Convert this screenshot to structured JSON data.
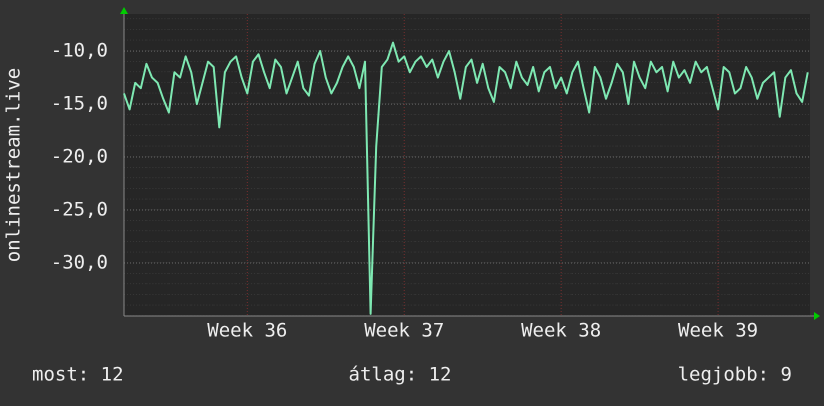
{
  "chart_data": {
    "type": "line",
    "y_label": "onlinestream.live",
    "x": [
      0,
      0.25,
      0.5,
      0.75,
      1,
      1.25,
      1.5,
      1.75,
      2,
      2.25,
      2.5,
      2.75,
      3,
      3.25,
      3.5,
      3.75,
      4,
      4.25,
      4.5,
      4.75,
      5,
      5.25,
      5.5,
      5.75,
      6,
      6.25,
      6.5,
      6.75,
      7,
      7.25,
      7.5,
      7.75,
      8,
      8.25,
      8.5,
      8.75,
      9,
      9.25,
      9.5,
      9.75,
      10,
      10.25,
      10.5,
      10.75,
      11,
      11.25,
      11.5,
      11.75,
      12,
      12.25,
      12.5,
      12.75,
      13,
      13.25,
      13.5,
      13.75,
      14,
      14.25,
      14.5,
      14.75,
      15,
      15.25,
      15.5,
      15.75,
      16,
      16.25,
      16.5,
      16.75,
      17,
      17.25,
      17.5,
      17.75,
      18,
      18.25,
      18.5,
      18.75,
      19,
      19.25,
      19.5,
      19.75,
      20,
      20.25,
      20.5,
      20.75,
      21,
      21.25,
      21.5,
      21.75,
      22,
      22.25,
      22.5,
      22.75,
      23,
      23.25,
      23.5,
      23.75,
      24,
      24.25,
      24.5,
      24.75,
      25,
      25.25,
      25.5,
      25.75,
      26,
      26.25,
      26.5,
      26.75,
      27,
      27.25,
      27.5,
      27.75,
      28,
      28.25,
      28.5,
      28.75,
      29,
      29.25,
      29.5,
      29.75,
      30,
      30.25,
      30.5
    ],
    "values": [
      -14.0,
      -15.5,
      -13.0,
      -13.5,
      -11.2,
      -12.5,
      -13.0,
      -14.5,
      -15.8,
      -12.0,
      -12.5,
      -10.5,
      -12.0,
      -15.0,
      -13.0,
      -11.0,
      -11.5,
      -17.2,
      -12.0,
      -11.0,
      -10.5,
      -12.5,
      -14.0,
      -11.0,
      -10.3,
      -12.0,
      -13.5,
      -10.8,
      -11.5,
      -14.0,
      -12.5,
      -11.0,
      -13.5,
      -14.2,
      -11.2,
      -10.0,
      -12.5,
      -14.0,
      -13.0,
      -11.5,
      -10.5,
      -11.5,
      -13.5,
      -11.0,
      -34.8,
      -19.0,
      -11.5,
      -10.8,
      -9.2,
      -11.0,
      -10.5,
      -12.0,
      -11.0,
      -10.5,
      -11.5,
      -10.8,
      -12.5,
      -11.0,
      -10.0,
      -12.0,
      -14.5,
      -11.5,
      -10.8,
      -13.0,
      -11.2,
      -13.5,
      -14.8,
      -11.5,
      -12.0,
      -13.5,
      -11.0,
      -12.5,
      -13.2,
      -11.5,
      -13.8,
      -12.0,
      -11.5,
      -13.5,
      -12.5,
      -14.0,
      -12.0,
      -11.0,
      -13.5,
      -15.8,
      -11.5,
      -12.5,
      -14.5,
      -13.0,
      -11.2,
      -12.0,
      -15.0,
      -11.0,
      -12.5,
      -13.5,
      -11.0,
      -12.0,
      -11.5,
      -13.8,
      -11.0,
      -12.5,
      -11.8,
      -13.0,
      -11.0,
      -12.0,
      -11.5,
      -13.5,
      -15.5,
      -11.5,
      -12.0,
      -14.0,
      -13.5,
      -11.5,
      -12.5,
      -14.5,
      -13.0,
      -12.5,
      -12.0,
      -16.2,
      -12.5,
      -11.8,
      -14.0,
      -14.8,
      -12.0
    ],
    "color": "#7ee8b2",
    "xlim": [
      0,
      30.6
    ],
    "xticks": [
      {
        "value": 5.5,
        "label": "Week 36"
      },
      {
        "value": 12.5,
        "label": "Week 37"
      },
      {
        "value": 19.5,
        "label": "Week 38"
      },
      {
        "value": 26.5,
        "label": "Week 39"
      }
    ],
    "ylim": [
      -35,
      -6.5
    ],
    "yticks": [
      {
        "value": -10,
        "label": "-10,0"
      },
      {
        "value": -15,
        "label": "-15,0"
      },
      {
        "value": -20,
        "label": "-20,0"
      },
      {
        "value": -25,
        "label": "-25,0"
      },
      {
        "value": -30,
        "label": "-30,0"
      }
    ],
    "grid": true,
    "footer": [
      "most: 12",
      "átlag: 12",
      "legjobb: 9"
    ]
  }
}
